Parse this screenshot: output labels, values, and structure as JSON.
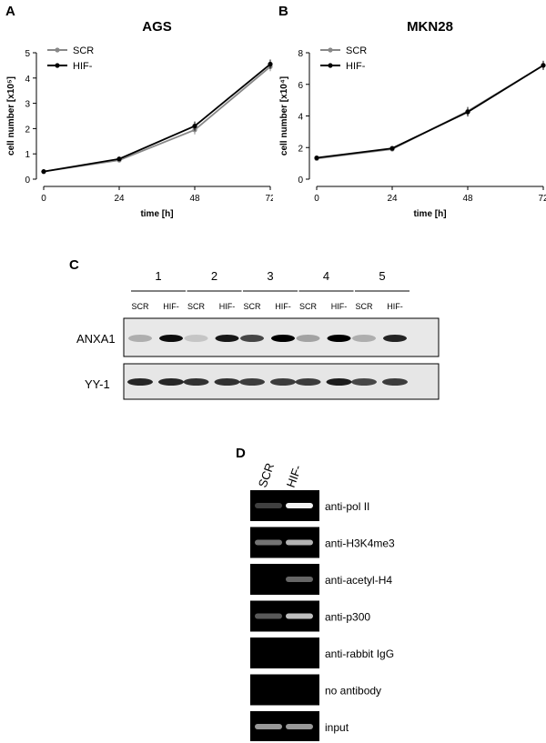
{
  "panels": {
    "A": "A",
    "B": "B",
    "C": "C",
    "D": "D"
  },
  "chart_data": [
    {
      "type": "line",
      "title": "AGS",
      "xlabel": "time [h]",
      "ylabel": "cell number [x10⁵]",
      "x": [
        0,
        24,
        48,
        72
      ],
      "xticks": [
        "0",
        "24",
        "48",
        "72"
      ],
      "yticks": [
        "0",
        "1",
        "2",
        "3",
        "4",
        "5"
      ],
      "xlim": [
        0,
        72
      ],
      "ylim": [
        0,
        5
      ],
      "legend_position": "top-left",
      "series": [
        {
          "name": "SCR",
          "values": [
            0.3,
            0.75,
            1.95,
            4.45
          ],
          "color": "#888888"
        },
        {
          "name": "HIF-",
          "values": [
            0.3,
            0.8,
            2.1,
            4.55
          ],
          "color": "#000000"
        }
      ]
    },
    {
      "type": "line",
      "title": "MKN28",
      "xlabel": "time [h]",
      "ylabel": "cell number [x10⁴]",
      "x": [
        0,
        24,
        48,
        72
      ],
      "xticks": [
        "0",
        "24",
        "48",
        "72"
      ],
      "yticks": [
        "0",
        "2",
        "4",
        "6",
        "8"
      ],
      "xlim": [
        0,
        72
      ],
      "ylim": [
        0,
        8
      ],
      "legend_position": "top-left",
      "series": [
        {
          "name": "SCR",
          "values": [
            1.3,
            1.9,
            4.3,
            7.2
          ],
          "color": "#888888"
        },
        {
          "name": "HIF-",
          "values": [
            1.35,
            1.95,
            4.25,
            7.2
          ],
          "color": "#000000"
        }
      ]
    }
  ],
  "blot": {
    "lanes": [
      "1",
      "2",
      "3",
      "4",
      "5"
    ],
    "conditions": [
      "SCR",
      "HIF-"
    ],
    "rows": [
      "ANXA1",
      "YY-1"
    ]
  },
  "gel": {
    "columns": [
      "SCR",
      "HIF-"
    ],
    "rows": [
      "anti-pol II",
      "anti-H3K4me3",
      "anti-acetyl-H4",
      "anti-p300",
      "anti-rabbit IgG",
      "no antibody",
      "input"
    ]
  }
}
